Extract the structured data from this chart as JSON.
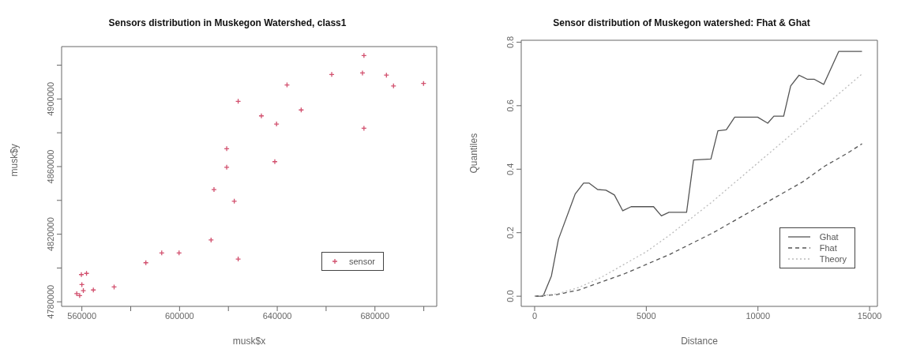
{
  "chart_data": [
    {
      "type": "scatter",
      "title": "Sensors distribution in Muskegon Watershed, class1",
      "xlabel": "musk$x",
      "ylabel": "musk$y",
      "marker": "cross",
      "legend": "bottom right",
      "grid": false,
      "xlim": [
        551700,
        705300
      ],
      "ylim": [
        4777300,
        4931000
      ],
      "xticks": [
        560000,
        {
          "value": 580000,
          "label": null
        },
        600000,
        {
          "value": 620000,
          "label": null
        },
        640000,
        {
          "value": 660000,
          "label": null
        },
        680000,
        {
          "value": 700000,
          "label": null
        }
      ],
      "yticks": [
        4780000,
        {
          "value": 4800000,
          "label": null
        },
        4820000,
        {
          "value": 4840000,
          "label": null
        },
        4860000,
        {
          "value": 4880000,
          "label": null
        },
        4900000,
        {
          "value": 4920000,
          "label": null
        }
      ],
      "series": [
        {
          "name": "sensor",
          "color": "#d2506e",
          "x": [
            675500,
            662300,
            674900,
            684700,
            687600,
            644000,
            699900,
            624000,
            649800,
            633500,
            639700,
            675500,
            619300,
            619300,
            639000,
            614100,
            622400,
            612900,
            592700,
            599800,
            586200,
            624000,
            573200,
            559800,
            561900,
            560000,
            564700,
            560600,
            557900,
            559100
          ],
          "values": [
            4925700,
            4914500,
            4915400,
            4914100,
            4907700,
            4908300,
            4909200,
            4898600,
            4893500,
            4890000,
            4885200,
            4882700,
            4870600,
            4859600,
            4862900,
            4846400,
            4839500,
            4816600,
            4808900,
            4808900,
            4803100,
            4805300,
            4788800,
            4796100,
            4796800,
            4790200,
            4787000,
            4786600,
            4784800,
            4783700
          ]
        }
      ]
    },
    {
      "type": "line",
      "title": "Sensor distribution of Muskegon watershed: Fhat & Ghat",
      "xlabel": "Distance",
      "ylabel": "Quantiles",
      "legend": "bottom right",
      "grid": false,
      "xlim": [
        -600,
        15350
      ],
      "ylim": [
        -0.032,
        0.806
      ],
      "xticks": [
        0,
        5000,
        10000,
        15000
      ],
      "yticks": [
        {
          "value": 0,
          "label": "0.0"
        },
        {
          "value": 0.2,
          "label": "0.2"
        },
        {
          "value": 0.4,
          "label": "0.4"
        },
        {
          "value": 0.6,
          "label": "0.6"
        },
        {
          "value": 0.8,
          "label": "0.8"
        }
      ],
      "series": [
        {
          "name": "Ghat",
          "color": "#555555",
          "line_style": "solid",
          "x": [
            0,
            376,
            752,
            1065,
            1817,
            2193,
            2443,
            2819,
            3195,
            3571,
            3947,
            4323,
            5325,
            5676,
            6014,
            6804,
            7117,
            7894,
            8207,
            8583,
            8959,
            9987,
            10438,
            10713,
            11152,
            11465,
            11841,
            12217,
            12530,
            12944,
            13620,
            14660
          ],
          "values": [
            0,
            0,
            0.064,
            0.179,
            0.322,
            0.356,
            0.356,
            0.336,
            0.334,
            0.319,
            0.269,
            0.282,
            0.282,
            0.253,
            0.264,
            0.264,
            0.429,
            0.432,
            0.521,
            0.524,
            0.564,
            0.564,
            0.545,
            0.567,
            0.567,
            0.662,
            0.696,
            0.683,
            0.683,
            0.667,
            0.771,
            0.771
          ]
        },
        {
          "name": "Fhat",
          "color": "#555555",
          "line_style": "dashed",
          "x": [
            0,
            1000,
            2000,
            3000,
            4000,
            5000,
            6000,
            7000,
            8000,
            9000,
            10000,
            11000,
            12000,
            13000,
            14000,
            14660
          ],
          "values": [
            0,
            0.005,
            0.02,
            0.045,
            0.07,
            0.1,
            0.13,
            0.165,
            0.2,
            0.24,
            0.28,
            0.32,
            0.36,
            0.41,
            0.45,
            0.48
          ]
        },
        {
          "name": "Theory",
          "color": "#bbbbbb",
          "line_style": "dotted",
          "x": [
            0,
            1000,
            2000,
            3000,
            4000,
            5000,
            6000,
            7000,
            8000,
            9000,
            10000,
            11000,
            12000,
            13000,
            14000,
            14660
          ],
          "values": [
            0,
            0.007,
            0.028,
            0.06,
            0.1,
            0.14,
            0.19,
            0.245,
            0.3,
            0.36,
            0.42,
            0.48,
            0.54,
            0.6,
            0.66,
            0.7
          ]
        }
      ]
    }
  ]
}
